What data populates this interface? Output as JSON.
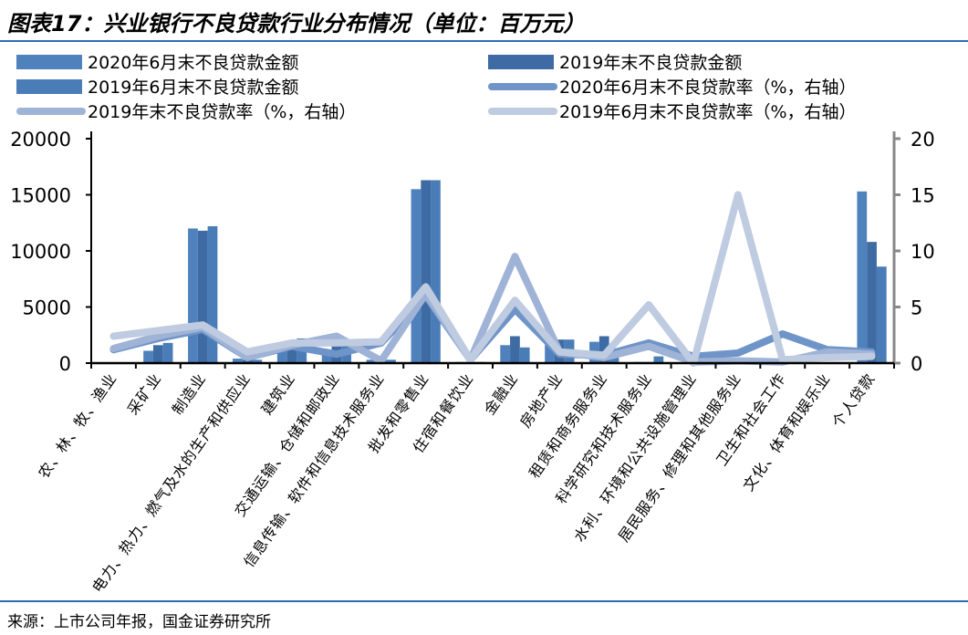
{
  "title": "图表17：兴业银行不良贷款行业分布情况（单位：百万元）",
  "source": "来源：上市公司年报，国金证券研究所",
  "colors": {
    "bar_2020h1": "#4f81bd",
    "bar_2019ye": "#3e6ba3",
    "bar_2019h1": "#4a7db8",
    "rate_2020h1": "#6f94c8",
    "rate_2019ye": "#9fb3d7",
    "rate_2019h1": "#bfcbe0",
    "rule": "#2f6ab5"
  },
  "chart_data": {
    "type": "bar+line",
    "categories": [
      "农、林、牧、渔业",
      "采矿业",
      "制造业",
      "电力、热力、燃气及水的生产和供应业",
      "建筑业",
      "交通运输、仓储和邮政业",
      "信息传输、软件和信息技术服务业",
      "批发和零售业",
      "住宿和餐饮业",
      "金融业",
      "房地产业",
      "租赁和商务服务业",
      "科学研究和技术服务业",
      "水利、环境和公共设施管理业",
      "居民服务、修理和其他服务业",
      "卫生和社会工作",
      "文化、体育和娱乐业",
      "个人贷款"
    ],
    "y_left": {
      "range": [
        0,
        20000
      ],
      "ticks": [
        "0",
        "5000",
        "10000",
        "15000",
        "20000"
      ]
    },
    "y_right": {
      "range": [
        0,
        20
      ],
      "ticks": [
        "0",
        "5",
        "10",
        "15",
        "20"
      ]
    },
    "legend_placement": "top",
    "bars": [
      {
        "name": "2020年6月末不良贷款金额",
        "values": [
          50,
          1100,
          12000,
          400,
          1500,
          1000,
          300,
          15500,
          100,
          1600,
          1800,
          1900,
          100,
          0,
          0,
          0,
          0,
          15300
        ]
      },
      {
        "name": "2019年末不良贷款金额",
        "values": [
          50,
          1600,
          11800,
          300,
          2000,
          1600,
          300,
          16300,
          100,
          2400,
          2100,
          2400,
          100,
          0,
          0,
          0,
          0,
          10800
        ]
      },
      {
        "name": "2019年6月末不良贷款金额",
        "values": [
          50,
          1800,
          12200,
          300,
          2200,
          1600,
          300,
          16300,
          100,
          1400,
          2100,
          500,
          600,
          0,
          0,
          0,
          0,
          8600
        ]
      }
    ],
    "lines": [
      {
        "name": "2020年6月末不良贷款率（%，右轴）",
        "values": [
          1.2,
          2.2,
          3.0,
          0.5,
          1.5,
          0.8,
          1.8,
          6.0,
          0.3,
          4.8,
          0.8,
          0.7,
          1.8,
          0.6,
          0.9,
          2.6,
          1.2,
          1.0
        ]
      },
      {
        "name": "2019年末不良贷款率（%，右轴）",
        "values": [
          1.3,
          2.4,
          3.2,
          0.5,
          1.6,
          2.4,
          0.2,
          6.2,
          0.3,
          9.5,
          1.0,
          0.5,
          1.5,
          0.1,
          0.2,
          0.1,
          1.0,
          0.8
        ]
      },
      {
        "name": "2019年6月末不良贷款率（%，右轴）",
        "values": [
          2.4,
          2.9,
          3.4,
          1.0,
          1.8,
          1.8,
          1.9,
          6.8,
          0.3,
          5.6,
          1.0,
          0.7,
          5.2,
          0.0,
          15.0,
          0.3,
          0.5,
          0.6
        ]
      }
    ]
  }
}
